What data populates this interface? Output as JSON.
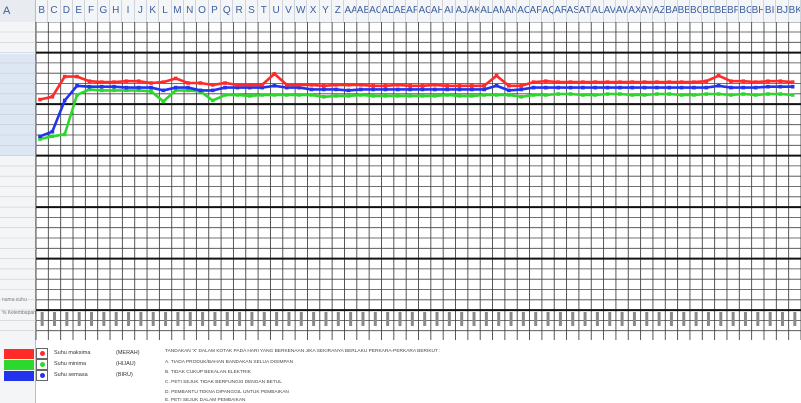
{
  "corner_label": "A",
  "column_headers": [
    "B",
    "C",
    "D",
    "E",
    "F",
    "G",
    "H",
    "I",
    "J",
    "K",
    "L",
    "M",
    "N",
    "O",
    "P",
    "Q",
    "R",
    "S",
    "T",
    "U",
    "V",
    "W",
    "X",
    "Y",
    "Z",
    "AA",
    "AB",
    "AC",
    "AD",
    "AE",
    "AF",
    "AG",
    "AH",
    "AI",
    "AJ",
    "AK",
    "AL",
    "AM",
    "AN",
    "AO",
    "AP",
    "AQ",
    "AR",
    "AS",
    "AT",
    "AU",
    "AV",
    "AW",
    "AX",
    "AY",
    "AZ",
    "BA",
    "BB",
    "BC",
    "BD",
    "BE",
    "BF",
    "BG",
    "BH",
    "BI",
    "BJ",
    "BK"
  ],
  "row_header_labels": [
    "nama suhu",
    "% Kelembapan"
  ],
  "colors": {
    "max": "#ff2a2a",
    "min": "#2bd82b",
    "current": "#2233ee",
    "grid": "#444444",
    "grid_thick": "#111111"
  },
  "chart_data": {
    "type": "line",
    "x": [
      1,
      2,
      3,
      4,
      5,
      6,
      7,
      8,
      9,
      10,
      11,
      12,
      13,
      14,
      15,
      16,
      17,
      18,
      19,
      20,
      21,
      22,
      23,
      24,
      25,
      26,
      27,
      28,
      29,
      30,
      31,
      32,
      33,
      34,
      35,
      36,
      37,
      38,
      39,
      40,
      41,
      42,
      43,
      44,
      45,
      46,
      47,
      48,
      49,
      50,
      51,
      52,
      53,
      54,
      55,
      56,
      57,
      58,
      59,
      60,
      61,
      62
    ],
    "series": [
      {
        "name": "Suhu maksima",
        "values": [
          103.6,
          104.2,
          108.6,
          108.6,
          107.6,
          107.4,
          107.4,
          107.6,
          107.6,
          107.2,
          107.4,
          108.2,
          107.2,
          107.2,
          106.8,
          107.2,
          106.8,
          106.8,
          106.8,
          109.2,
          106.8,
          106.8,
          106.8,
          106.6,
          106.8,
          106.8,
          106.8,
          106.6,
          106.6,
          106.8,
          106.6,
          106.6,
          106.8,
          106.6,
          106.6,
          106.6,
          106.6,
          108.8,
          106.6,
          106.6,
          107.4,
          107.6,
          107.4,
          107.4,
          107.4,
          107.4,
          107.4,
          107.4,
          107.4,
          107.4,
          107.4,
          107.4,
          107.4,
          107.4,
          107.6,
          108.8,
          107.6,
          107.6,
          107.4,
          107.6,
          107.6,
          107.4
        ]
      },
      {
        "name": "Suhu minima",
        "values": [
          95,
          95.6,
          96,
          104.6,
          105.8,
          105.6,
          105.6,
          105.6,
          105.6,
          105.4,
          103.2,
          105.6,
          105.6,
          105.4,
          103.4,
          104.6,
          104.6,
          104.4,
          104.6,
          104.6,
          104.6,
          104.6,
          104.6,
          104.2,
          104.4,
          104.4,
          104.6,
          104.4,
          104.4,
          104.4,
          104.4,
          104.4,
          104.4,
          104.6,
          104.4,
          104.4,
          104.6,
          104.6,
          104.6,
          104.2,
          104.6,
          104.6,
          104.8,
          104.8,
          104.6,
          104.6,
          104.8,
          104.8,
          104.6,
          104.6,
          104.8,
          104.8,
          104.6,
          104.6,
          104.8,
          104.8,
          104.6,
          104.8,
          104.6,
          104.8,
          104.8,
          104.6
        ]
      },
      {
        "name": "Suhu semasa",
        "values": [
          95.6,
          96.6,
          103.4,
          106.6,
          106.4,
          106.4,
          106.4,
          106.2,
          106.2,
          106.2,
          105.6,
          106.2,
          106.2,
          105.6,
          105.6,
          106.2,
          106.2,
          106.2,
          106.2,
          106.6,
          106.2,
          106.2,
          105.8,
          105.8,
          105.8,
          105.6,
          105.8,
          105.8,
          105.8,
          105.8,
          105.8,
          105.8,
          105.8,
          105.8,
          105.8,
          105.8,
          105.8,
          106.6,
          105.6,
          105.8,
          106.2,
          106.2,
          106.2,
          106.2,
          106.2,
          106.2,
          106.2,
          106.2,
          106.2,
          106.2,
          106.2,
          106.2,
          106.2,
          106.2,
          106.2,
          106.6,
          106.2,
          106.2,
          106.2,
          106.4,
          106.4,
          106.4
        ]
      }
    ],
    "marker": "square",
    "grid": true,
    "legend": "bottom-left"
  },
  "legend": [
    {
      "label": "Suhu maksima",
      "tag": "(MERAH)",
      "color": "#ff2a2a"
    },
    {
      "label": "Suhu minima",
      "tag": "(HIJAU)",
      "color": "#2bd82b"
    },
    {
      "label": "Suhu semasa",
      "tag": "(BIRU)",
      "color": "#2233ee"
    }
  ],
  "notes": [
    "TANDAKAN 'X' DALAM KOTAK PADA HARI YANG BERKENAAN JIKA SEKIRANYA BERLAKU PERKARA-PERKARA BERIKUT :",
    "A. TIADA PRODUK/BAHAN BANDAKAN SELUA  DISIMPAN",
    "B. TIDAK CUKUP BEKALAN ELEKTRIK",
    "C. PETI SEJUK TIDAK BERFUNGSI DENGAN BETUL",
    "D. PEMBANTU TEKNA DIPANGGIL UNTUK PEMBAIKAN",
    "E. PETI SEJUK DALAM PEMBAIKAN"
  ]
}
